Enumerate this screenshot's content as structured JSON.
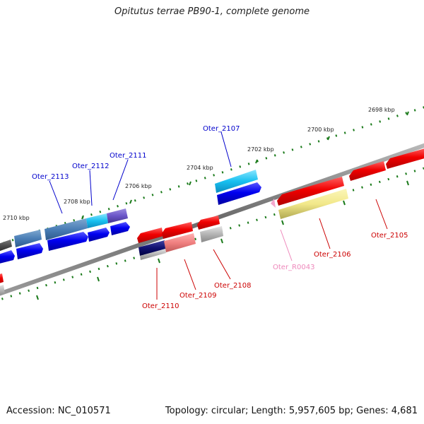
{
  "title": "Opitutus terrae PB90-1, complete genome",
  "footer": {
    "accession": "Accession: NC_010571",
    "topology": "Topology: circular; Length: 5,957,605 bp; Genes: 4,681"
  },
  "kbp_labels": [
    "2698 kbp",
    "2700 kbp",
    "2702 kbp",
    "2704 kbp",
    "2706 kbp",
    "2708 kbp",
    "2710 kbp"
  ],
  "gene_labels": {
    "oter_2113": "Oter_2113",
    "oter_2112": "Oter_2112",
    "oter_2111": "Oter_2111",
    "oter_2107": "Oter_2107",
    "oter_2110": "Oter_2110",
    "oter_2109": "Oter_2109",
    "oter_2108": "Oter_2108",
    "oter_r0043": "Oter_R0043",
    "oter_2106": "Oter_2106",
    "oter_2105": "Oter_2105"
  },
  "colors": {
    "forward_label": "#0000cc",
    "reverse_label": "#cc0000",
    "rna_label": "#ee88bb",
    "tick": "#1a7a1a",
    "backbone": "#808080"
  }
}
